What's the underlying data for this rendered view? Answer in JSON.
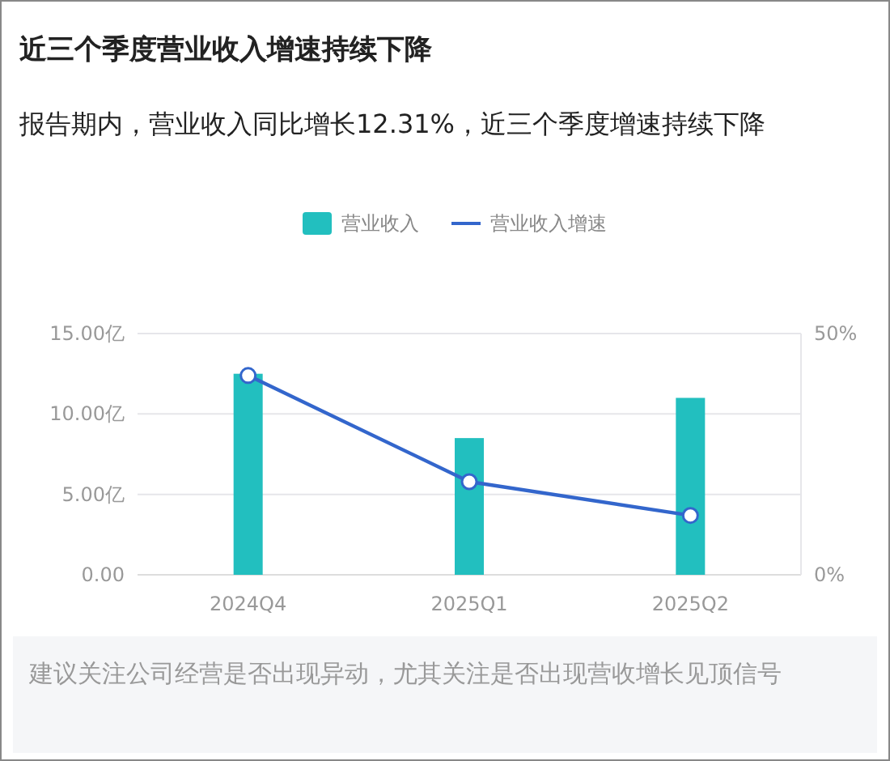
{
  "chart_data": {
    "type": "bar",
    "title": "近三个季度营业收入增速持续下降",
    "subtitle": "报告期内，营业收入同比增长12.31%，近三个季度增速持续下降",
    "categories": [
      "2024Q4",
      "2025Q1",
      "2025Q2"
    ],
    "series": [
      {
        "name": "营业收入",
        "color": "#22bfbf",
        "values": [
          12.5,
          8.5,
          11.0
        ]
      },
      {
        "name": "营业收入增速",
        "type": "line",
        "axis": "y2",
        "color": "#3366cc",
        "values": [
          41.3,
          19.3,
          12.3
        ]
      }
    ],
    "ylim": [
      0,
      15
    ],
    "yticks": [
      {
        "value": 0,
        "label": "0.00"
      },
      {
        "value": 5,
        "label": "5.00亿"
      },
      {
        "value": 10,
        "label": "10.00亿"
      },
      {
        "value": 15,
        "label": "15.00亿"
      }
    ],
    "y2lim": [
      0,
      50
    ],
    "y2ticks": [
      {
        "value": 0,
        "label": "0%"
      },
      {
        "value": 50,
        "label": "50%"
      }
    ],
    "grid": "y",
    "legend": "top",
    "marker": "circle",
    "line_style": "solid",
    "annotations": [
      "建议关注公司经营是否出现异动，尤其关注是否出现营收增长见顶信号"
    ]
  }
}
